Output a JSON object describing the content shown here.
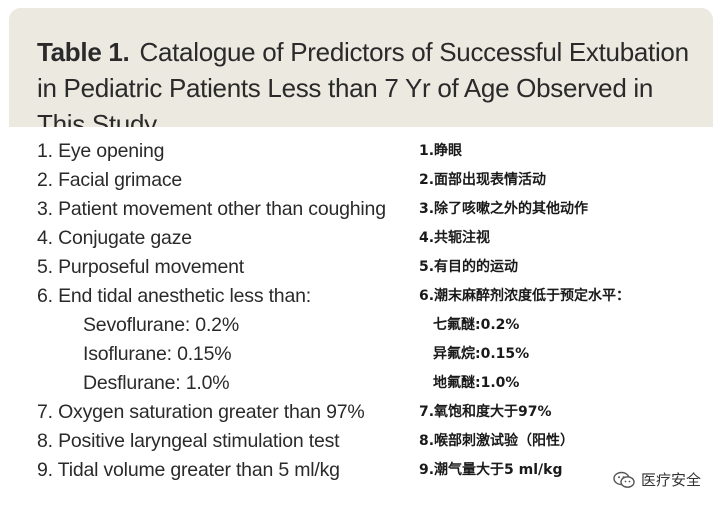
{
  "table": {
    "label": "Table 1.",
    "title": "Catalogue of Predictors of Successful Extubation in Pediatric Patients Less than 7 Yr of Age Observed in This Study"
  },
  "predictors_en": [
    "1. Eye opening",
    "2. Facial grimace",
    "3. Patient movement other than coughing",
    "4. Conjugate gaze",
    "5. Purposeful movement",
    "6. End tidal anesthetic less than:",
    "Sevoflurane: 0.2%",
    "Isoflurane: 0.15%",
    "Desflurane: 1.0%",
    "7. Oxygen saturation greater than 97%",
    "8. Positive laryngeal stimulation test",
    "9. Tidal volume greater than 5 ml/kg"
  ],
  "predictors_cn": [
    "1.睁眼",
    "2.面部出现表情活动",
    "3.除了咳嗽之外的其他动作",
    "4.共轭注视",
    "5.有目的的运动",
    "6.潮末麻醉剂浓度低于预定水平：",
    "七氟醚:0.2%",
    "异氟烷:0.15%",
    "地氟醚:1.0%",
    "7.氧饱和度大于97%",
    "8.喉部刺激试验（阳性）",
    "9.潮气量大于5 ml/kg"
  ],
  "watermark": {
    "text": "医疗安全",
    "icon": "wechat-icon"
  },
  "colors": {
    "header_bg": "#ebe9e0",
    "text": "#2a2a2a"
  }
}
